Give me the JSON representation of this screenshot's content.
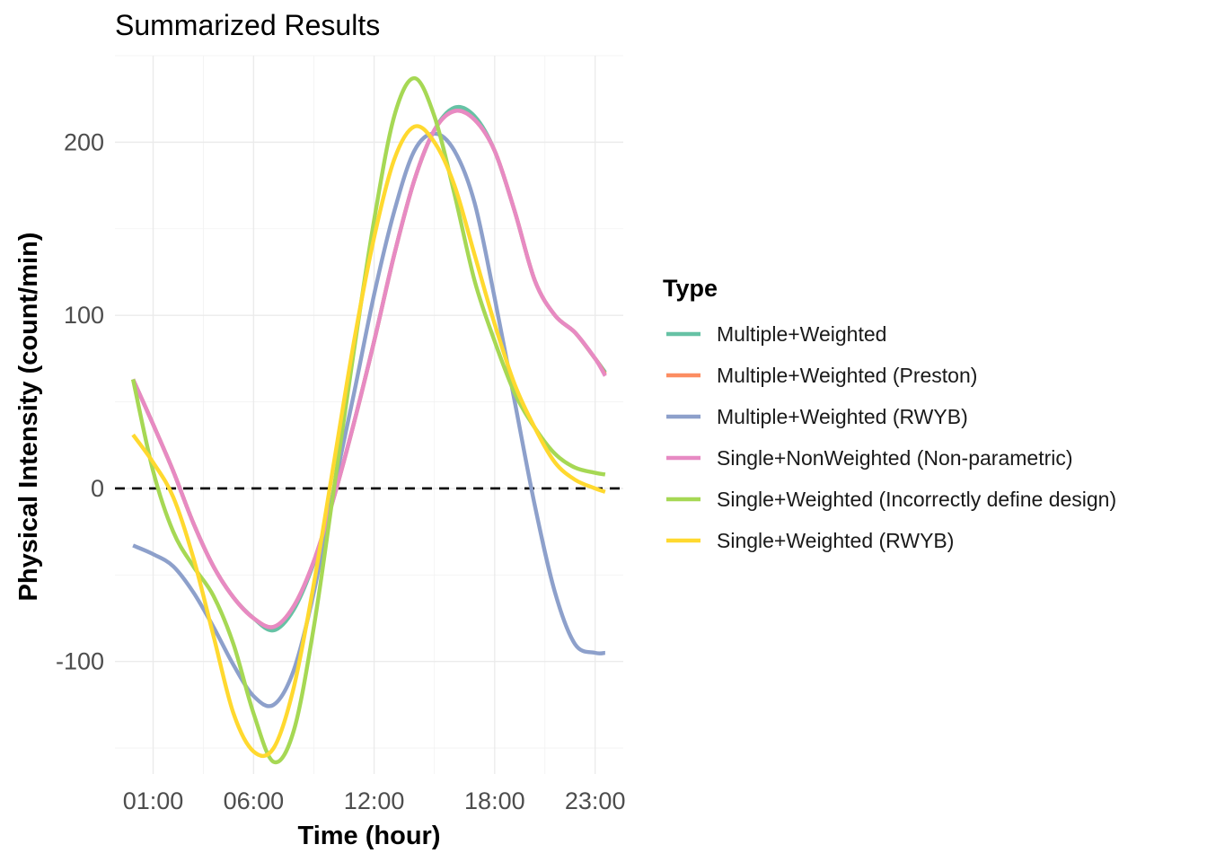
{
  "chart_data": {
    "type": "line",
    "title": "Summarized Results",
    "xlabel": "Time (hour)",
    "ylabel": "Physical Intensity (count/min)",
    "xlim": [
      -0.9,
      24.4
    ],
    "ylim": [
      -165,
      250
    ],
    "x_ticks": [
      {
        "value": 1,
        "label": "01:00"
      },
      {
        "value": 6,
        "label": "06:00"
      },
      {
        "value": 12,
        "label": "12:00"
      },
      {
        "value": 18,
        "label": "18:00"
      },
      {
        "value": 23,
        "label": "23:00"
      }
    ],
    "y_ticks": [
      {
        "value": -100,
        "label": "-100"
      },
      {
        "value": 0,
        "label": "0"
      },
      {
        "value": 100,
        "label": "100"
      },
      {
        "value": 200,
        "label": "200"
      }
    ],
    "reference_line": {
      "y": 0,
      "style": "dashed",
      "color": "#000000"
    },
    "grid": true,
    "legend": {
      "title": "Type",
      "placement": "right"
    },
    "x": [
      0,
      1,
      2,
      3,
      4,
      5,
      6,
      7,
      8,
      9,
      10,
      11,
      12,
      13,
      14,
      15,
      16,
      17,
      18,
      19,
      20,
      21,
      22,
      23,
      23.5
    ],
    "series": [
      {
        "name": "Multiple+Weighted",
        "color": "#66c2a5",
        "values": [
          63,
          37,
          10,
          -20,
          -45,
          -63,
          -75,
          -82,
          -70,
          -43,
          -5,
          38,
          85,
          135,
          178,
          207,
          220,
          215,
          195,
          160,
          120,
          100,
          90,
          75,
          67
        ]
      },
      {
        "name": "Multiple+Weighted (Preston)",
        "color": "#fc8d62",
        "values": [
          63,
          37,
          10,
          -20,
          -45,
          -63,
          -75,
          -80,
          -68,
          -42,
          -5,
          38,
          85,
          135,
          178,
          207,
          218,
          213,
          195,
          160,
          120,
          100,
          90,
          75,
          66
        ]
      },
      {
        "name": "Multiple+Weighted (RWYB)",
        "color": "#8da0cb",
        "values": [
          -33,
          -38,
          -45,
          -60,
          -80,
          -102,
          -120,
          -125,
          -105,
          -60,
          0,
          55,
          112,
          160,
          195,
          205,
          195,
          165,
          110,
          50,
          -10,
          -60,
          -90,
          -95,
          -95
        ]
      },
      {
        "name": "Single+NonWeighted (Non-parametric)",
        "color": "#e78ac3",
        "values": [
          63,
          37,
          10,
          -20,
          -45,
          -63,
          -75,
          -80,
          -68,
          -42,
          -5,
          38,
          85,
          135,
          178,
          207,
          218,
          213,
          195,
          160,
          120,
          100,
          90,
          75,
          65
        ]
      },
      {
        "name": "Single+Weighted (Incorrectly define design)",
        "color": "#a6d854",
        "values": [
          63,
          10,
          -25,
          -45,
          -62,
          -90,
          -130,
          -158,
          -140,
          -80,
          0,
          80,
          155,
          215,
          237,
          215,
          170,
          120,
          85,
          55,
          35,
          20,
          12,
          9,
          8
        ]
      },
      {
        "name": "Single+Weighted (RWYB)",
        "color": "#ffd92f",
        "values": [
          31,
          15,
          -5,
          -40,
          -85,
          -130,
          -152,
          -150,
          -115,
          -55,
          15,
          85,
          145,
          190,
          209,
          200,
          175,
          135,
          95,
          60,
          35,
          15,
          5,
          0,
          -2
        ]
      }
    ]
  }
}
